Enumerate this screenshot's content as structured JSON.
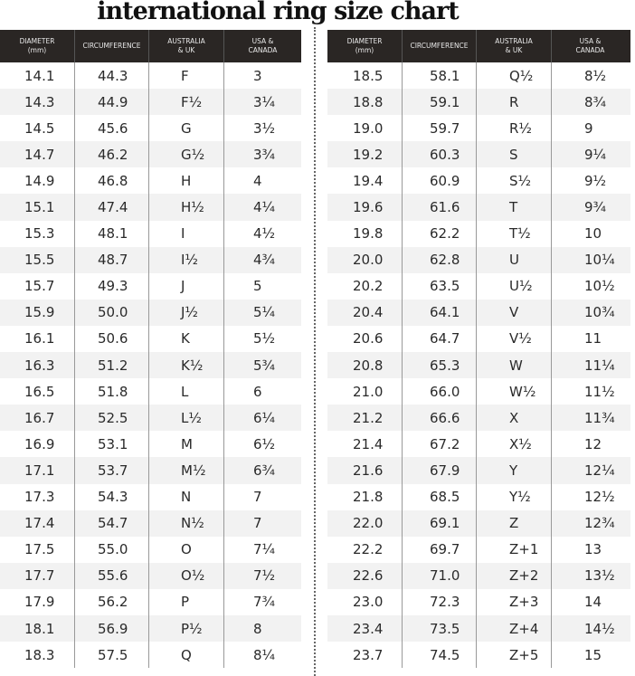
{
  "title": "international ring size chart",
  "headers": [
    "DIAMETER\n(mm)",
    "CIRCUMFERENCE",
    "AUSTRALIA\n& UK",
    "USA &\nCANADA"
  ],
  "left_rows": [
    [
      "14.1",
      "44.3",
      "F",
      "3"
    ],
    [
      "14.3",
      "44.9",
      "F½",
      "3¼"
    ],
    [
      "14.5",
      "45.6",
      "G",
      "3½"
    ],
    [
      "14.7",
      "46.2",
      "G½",
      "3¾"
    ],
    [
      "14.9",
      "46.8",
      "H",
      "4"
    ],
    [
      "15.1",
      "47.4",
      "H½",
      "4¼"
    ],
    [
      "15.3",
      "48.1",
      "I",
      "4½"
    ],
    [
      "15.5",
      "48.7",
      "I½",
      "4¾"
    ],
    [
      "15.7",
      "49.3",
      "J",
      "5"
    ],
    [
      "15.9",
      "50.0",
      "J½",
      "5¼"
    ],
    [
      "16.1",
      "50.6",
      "K",
      "5½"
    ],
    [
      "16.3",
      "51.2",
      "K½",
      "5¾"
    ],
    [
      "16.5",
      "51.8",
      "L",
      "6"
    ],
    [
      "16.7",
      "52.5",
      "L½",
      "6¼"
    ],
    [
      "16.9",
      "53.1",
      "M",
      "6½"
    ],
    [
      "17.1",
      "53.7",
      "M½",
      "6¾"
    ],
    [
      "17.3",
      "54.3",
      "N",
      "7"
    ],
    [
      "17.4",
      "54.7",
      "N½",
      "7"
    ],
    [
      "17.5",
      "55.0",
      "O",
      "7¼"
    ],
    [
      "17.7",
      "55.6",
      "O½",
      "7½"
    ],
    [
      "17.9",
      "56.2",
      "P",
      "7¾"
    ],
    [
      "18.1",
      "56.9",
      "P½",
      "8"
    ],
    [
      "18.3",
      "57.5",
      "Q",
      "8¼"
    ]
  ],
  "right_rows": [
    [
      "18.5",
      "58.1",
      "Q½",
      "8½"
    ],
    [
      "18.8",
      "59.1",
      "R",
      "8¾"
    ],
    [
      "19.0",
      "59.7",
      "R½",
      "9"
    ],
    [
      "19.2",
      "60.3",
      "S",
      "9¼"
    ],
    [
      "19.4",
      "60.9",
      "S½",
      "9½"
    ],
    [
      "19.6",
      "61.6",
      "T",
      "9¾"
    ],
    [
      "19.8",
      "62.2",
      "T½",
      "10"
    ],
    [
      "20.0",
      "62.8",
      "U",
      "10¼"
    ],
    [
      "20.2",
      "63.5",
      "U½",
      "10½"
    ],
    [
      "20.4",
      "64.1",
      "V",
      "10¾"
    ],
    [
      "20.6",
      "64.7",
      "V½",
      "11"
    ],
    [
      "20.8",
      "65.3",
      "W",
      "11¼"
    ],
    [
      "21.0",
      "66.0",
      "W½",
      "11½"
    ],
    [
      "21.2",
      "66.6",
      "X",
      "11¾"
    ],
    [
      "21.4",
      "67.2",
      "X½",
      "12"
    ],
    [
      "21.6",
      "67.9",
      "Y",
      "12¼"
    ],
    [
      "21.8",
      "68.5",
      "Y½",
      "12½"
    ],
    [
      "22.0",
      "69.1",
      "Z",
      "12¾"
    ],
    [
      "22.2",
      "69.7",
      "Z+1",
      "13"
    ],
    [
      "22.6",
      "71.0",
      "Z+2",
      "13½"
    ],
    [
      "23.0",
      "72.3",
      "Z+3",
      "14"
    ],
    [
      "23.4",
      "73.5",
      "Z+4",
      "14½"
    ],
    [
      "23.7",
      "74.5",
      "Z+5",
      "15"
    ]
  ],
  "colors": {
    "header_bg": "#2a2624",
    "stripe": "#f2f2f2"
  }
}
